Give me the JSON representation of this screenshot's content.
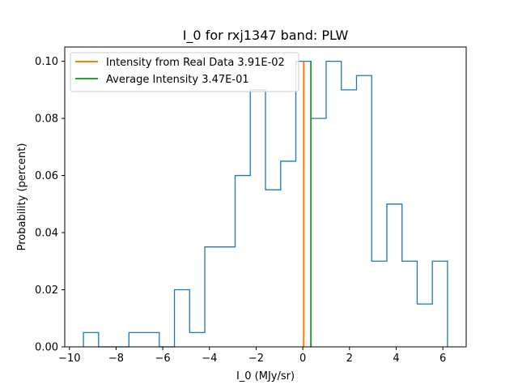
{
  "chart_data": {
    "type": "histogram",
    "title": "I_0 for rxj1347 band: PLW",
    "xlabel": "I_0 (MJy/sr)",
    "ylabel": "Probability (percent)",
    "xlim": [
      -10.2,
      7.0
    ],
    "ylim": [
      0.0,
      0.105
    ],
    "xticks": [
      -10,
      -8,
      -6,
      -4,
      -2,
      0,
      2,
      4,
      6
    ],
    "xtick_labels": [
      "−10",
      "−8",
      "−6",
      "−4",
      "−2",
      "0",
      "2",
      "4",
      "6"
    ],
    "yticks": [
      0.0,
      0.02,
      0.04,
      0.06,
      0.08,
      0.1
    ],
    "ytick_labels": [
      "0.00",
      "0.02",
      "0.04",
      "0.06",
      "0.08",
      "0.10"
    ],
    "grid": false,
    "legend_position": "top-left",
    "bin_edges": [
      -9.4,
      -8.75,
      -8.1,
      -7.45,
      -6.8,
      -6.15,
      -5.5,
      -4.85,
      -4.2,
      -3.55,
      -2.9,
      -2.25,
      -1.6,
      -0.95,
      -0.3,
      0.35,
      1.0,
      1.65,
      2.3,
      2.95,
      3.6,
      4.25,
      4.9,
      5.55,
      6.2
    ],
    "counts": [
      0.005,
      0.0,
      0.0,
      0.005,
      0.005,
      0.0,
      0.02,
      0.005,
      0.035,
      0.035,
      0.06,
      0.09,
      0.055,
      0.065,
      0.1,
      0.08,
      0.1,
      0.09,
      0.095,
      0.03,
      0.05,
      0.03,
      0.015,
      0.03
    ],
    "histogram_color": "#1f77b4",
    "vlines": [
      {
        "name": "Intensity from Real Data 3.91E-02",
        "x": 0.0391,
        "ymax": 0.1,
        "color": "#ff7f0e"
      },
      {
        "name": "Average Intensity 3.47E-01",
        "x": 0.347,
        "ymax": 0.1,
        "color": "#2ca02c"
      }
    ]
  }
}
